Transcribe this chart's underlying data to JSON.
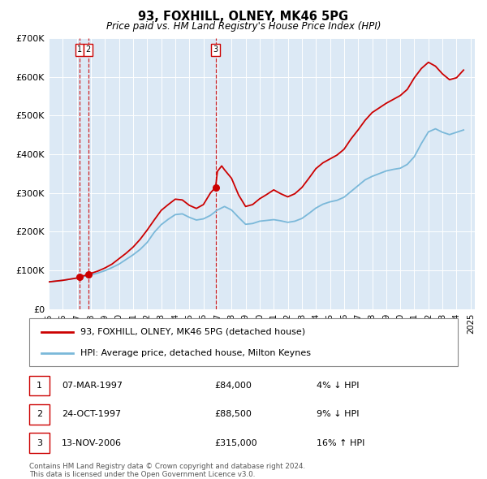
{
  "title": "93, FOXHILL, OLNEY, MK46 5PG",
  "subtitle": "Price paid vs. HM Land Registry's House Price Index (HPI)",
  "bg_color": "#dce9f5",
  "ylim": [
    0,
    700000
  ],
  "yticks": [
    0,
    100000,
    200000,
    300000,
    400000,
    500000,
    600000,
    700000
  ],
  "ytick_labels": [
    "£0",
    "£100K",
    "£200K",
    "£300K",
    "£400K",
    "£500K",
    "£600K",
    "£700K"
  ],
  "sale_dates": [
    1997.18,
    1997.81,
    2006.87
  ],
  "sale_prices": [
    84000,
    88500,
    315000
  ],
  "sale_label_nums": [
    1,
    2,
    3
  ],
  "vline_dates": [
    1997.18,
    1997.81,
    2006.87
  ],
  "legend_property_label": "93, FOXHILL, OLNEY, MK46 5PG (detached house)",
  "legend_hpi_label": "HPI: Average price, detached house, Milton Keynes",
  "property_line_color": "#cc0000",
  "hpi_line_color": "#7ab8d9",
  "table_rows": [
    {
      "num": 1,
      "date": "07-MAR-1997",
      "price": "£84,000",
      "pct": "4%",
      "dir": "↓",
      "vs": "HPI"
    },
    {
      "num": 2,
      "date": "24-OCT-1997",
      "price": "£88,500",
      "pct": "9%",
      "dir": "↓",
      "vs": "HPI"
    },
    {
      "num": 3,
      "date": "13-NOV-2006",
      "price": "£315,000",
      "pct": "16%",
      "dir": "↑",
      "vs": "HPI"
    }
  ],
  "footnote1": "Contains HM Land Registry data © Crown copyright and database right 2024.",
  "footnote2": "This data is licensed under the Open Government Licence v3.0.",
  "hpi_data": {
    "years": [
      1995.0,
      1995.5,
      1996.0,
      1996.5,
      1997.0,
      1997.5,
      1998.0,
      1998.5,
      1999.0,
      1999.5,
      2000.0,
      2000.5,
      2001.0,
      2001.5,
      2002.0,
      2002.5,
      2003.0,
      2003.5,
      2004.0,
      2004.5,
      2005.0,
      2005.5,
      2006.0,
      2006.5,
      2007.0,
      2007.5,
      2008.0,
      2008.5,
      2009.0,
      2009.5,
      2010.0,
      2010.5,
      2011.0,
      2011.5,
      2012.0,
      2012.5,
      2013.0,
      2013.5,
      2014.0,
      2014.5,
      2015.0,
      2015.5,
      2016.0,
      2016.5,
      2017.0,
      2017.5,
      2018.0,
      2018.5,
      2019.0,
      2019.5,
      2020.0,
      2020.5,
      2021.0,
      2021.5,
      2022.0,
      2022.5,
      2023.0,
      2023.5,
      2024.0,
      2024.5
    ],
    "values": [
      70000,
      72000,
      74000,
      77000,
      80000,
      84000,
      88000,
      93000,
      99000,
      107000,
      116000,
      128000,
      140000,
      154000,
      172000,
      198000,
      218000,
      232000,
      244000,
      246000,
      237000,
      230000,
      233000,
      242000,
      256000,
      265000,
      256000,
      237000,
      219000,
      221000,
      227000,
      229000,
      231000,
      228000,
      224000,
      227000,
      234000,
      247000,
      261000,
      271000,
      277000,
      281000,
      289000,
      304000,
      319000,
      334000,
      343000,
      350000,
      357000,
      361000,
      364000,
      374000,
      394000,
      428000,
      458000,
      466000,
      457000,
      451000,
      457000,
      463000
    ]
  },
  "property_data": {
    "years": [
      1995.0,
      1995.5,
      1996.0,
      1996.5,
      1997.0,
      1997.18,
      1997.5,
      1997.81,
      1998.0,
      1998.5,
      1999.0,
      1999.5,
      2000.0,
      2000.5,
      2001.0,
      2001.5,
      2002.0,
      2002.5,
      2003.0,
      2003.5,
      2004.0,
      2004.5,
      2005.0,
      2005.5,
      2006.0,
      2006.5,
      2006.87,
      2007.0,
      2007.3,
      2007.5,
      2008.0,
      2008.5,
      2009.0,
      2009.5,
      2010.0,
      2010.5,
      2011.0,
      2011.5,
      2012.0,
      2012.5,
      2013.0,
      2013.5,
      2014.0,
      2014.5,
      2015.0,
      2015.5,
      2016.0,
      2016.5,
      2017.0,
      2017.5,
      2018.0,
      2018.5,
      2019.0,
      2019.5,
      2020.0,
      2020.5,
      2021.0,
      2021.5,
      2022.0,
      2022.5,
      2023.0,
      2023.5,
      2024.0,
      2024.5
    ],
    "values": [
      70000,
      72000,
      74000,
      77000,
      80000,
      84000,
      86000,
      88500,
      92000,
      98000,
      106000,
      116000,
      130000,
      144000,
      160000,
      180000,
      204000,
      230000,
      255000,
      270000,
      284000,
      282000,
      268000,
      260000,
      270000,
      300000,
      315000,
      356000,
      370000,
      360000,
      338000,
      295000,
      265000,
      270000,
      285000,
      296000,
      308000,
      298000,
      290000,
      298000,
      314000,
      338000,
      363000,
      378000,
      388000,
      398000,
      413000,
      440000,
      463000,
      488000,
      508000,
      520000,
      532000,
      542000,
      552000,
      568000,
      598000,
      622000,
      638000,
      628000,
      608000,
      593000,
      598000,
      618000
    ]
  }
}
